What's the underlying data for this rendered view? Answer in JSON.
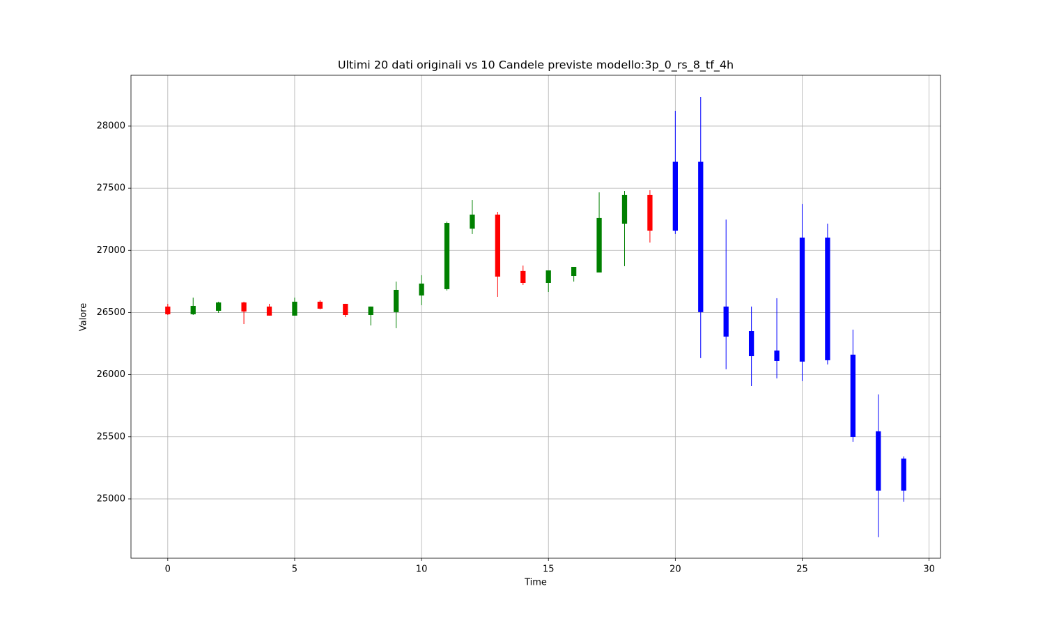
{
  "chart_data": {
    "type": "candlestick",
    "title": "Ultimi 20 dati originali vs 10 Candele previste modello:3p_0_rs_8_tf_4h",
    "x_label": "Time",
    "y_label": "Valore",
    "x": [
      0,
      1,
      2,
      3,
      4,
      5,
      6,
      7,
      8,
      9,
      10,
      11,
      12,
      13,
      14,
      15,
      16,
      17,
      18,
      19,
      20,
      21,
      22,
      23,
      24,
      25,
      26,
      27,
      28,
      29
    ],
    "open": [
      26548,
      26486,
      26514,
      26581,
      26548,
      26475,
      26587,
      26570,
      26480,
      26503,
      26637,
      26688,
      27175,
      27288,
      26834,
      26738,
      26794,
      26822,
      27215,
      27445,
      27159,
      27714,
      26548,
      26351,
      26194,
      26105,
      27103,
      26161,
      25544,
      25067
    ],
    "high": [
      26570,
      26620,
      26587,
      26587,
      26570,
      26620,
      26598,
      26570,
      26548,
      26749,
      26800,
      27232,
      27405,
      27310,
      26878,
      26839,
      26867,
      27467,
      27478,
      27484,
      28123,
      28235,
      27248,
      26548,
      26615,
      27372,
      27215,
      26362,
      25841,
      25342
    ],
    "low": [
      26480,
      26480,
      26497,
      26407,
      26475,
      26475,
      26525,
      26463,
      26396,
      26374,
      26559,
      26677,
      27131,
      26626,
      26721,
      26665,
      26749,
      26822,
      26873,
      27063,
      27131,
      26133,
      26043,
      25908,
      25970,
      25948,
      26082,
      25460,
      24692,
      24978
    ],
    "close": [
      26486,
      26553,
      26581,
      26508,
      26475,
      26587,
      26531,
      26480,
      26548,
      26682,
      26733,
      27220,
      27288,
      26789,
      26738,
      26839,
      26867,
      27260,
      27445,
      27159,
      27714,
      26503,
      26306,
      26149,
      26110,
      27103,
      26116,
      25499,
      25067,
      25325
    ],
    "colors": [
      "red",
      "green",
      "green",
      "red",
      "red",
      "green",
      "red",
      "red",
      "green",
      "green",
      "green",
      "green",
      "green",
      "red",
      "red",
      "green",
      "green",
      "green",
      "green",
      "red",
      "blue",
      "blue",
      "blue",
      "blue",
      "blue",
      "blue",
      "blue",
      "blue",
      "blue",
      "blue"
    ],
    "xlim": [
      -1.45,
      30.45
    ],
    "ylim": [
      24523,
      28409
    ],
    "xticks": [
      0,
      5,
      10,
      15,
      20,
      25,
      30
    ],
    "yticks": [
      25000,
      25500,
      26000,
      26500,
      27000,
      27500,
      28000
    ],
    "grid": true
  }
}
